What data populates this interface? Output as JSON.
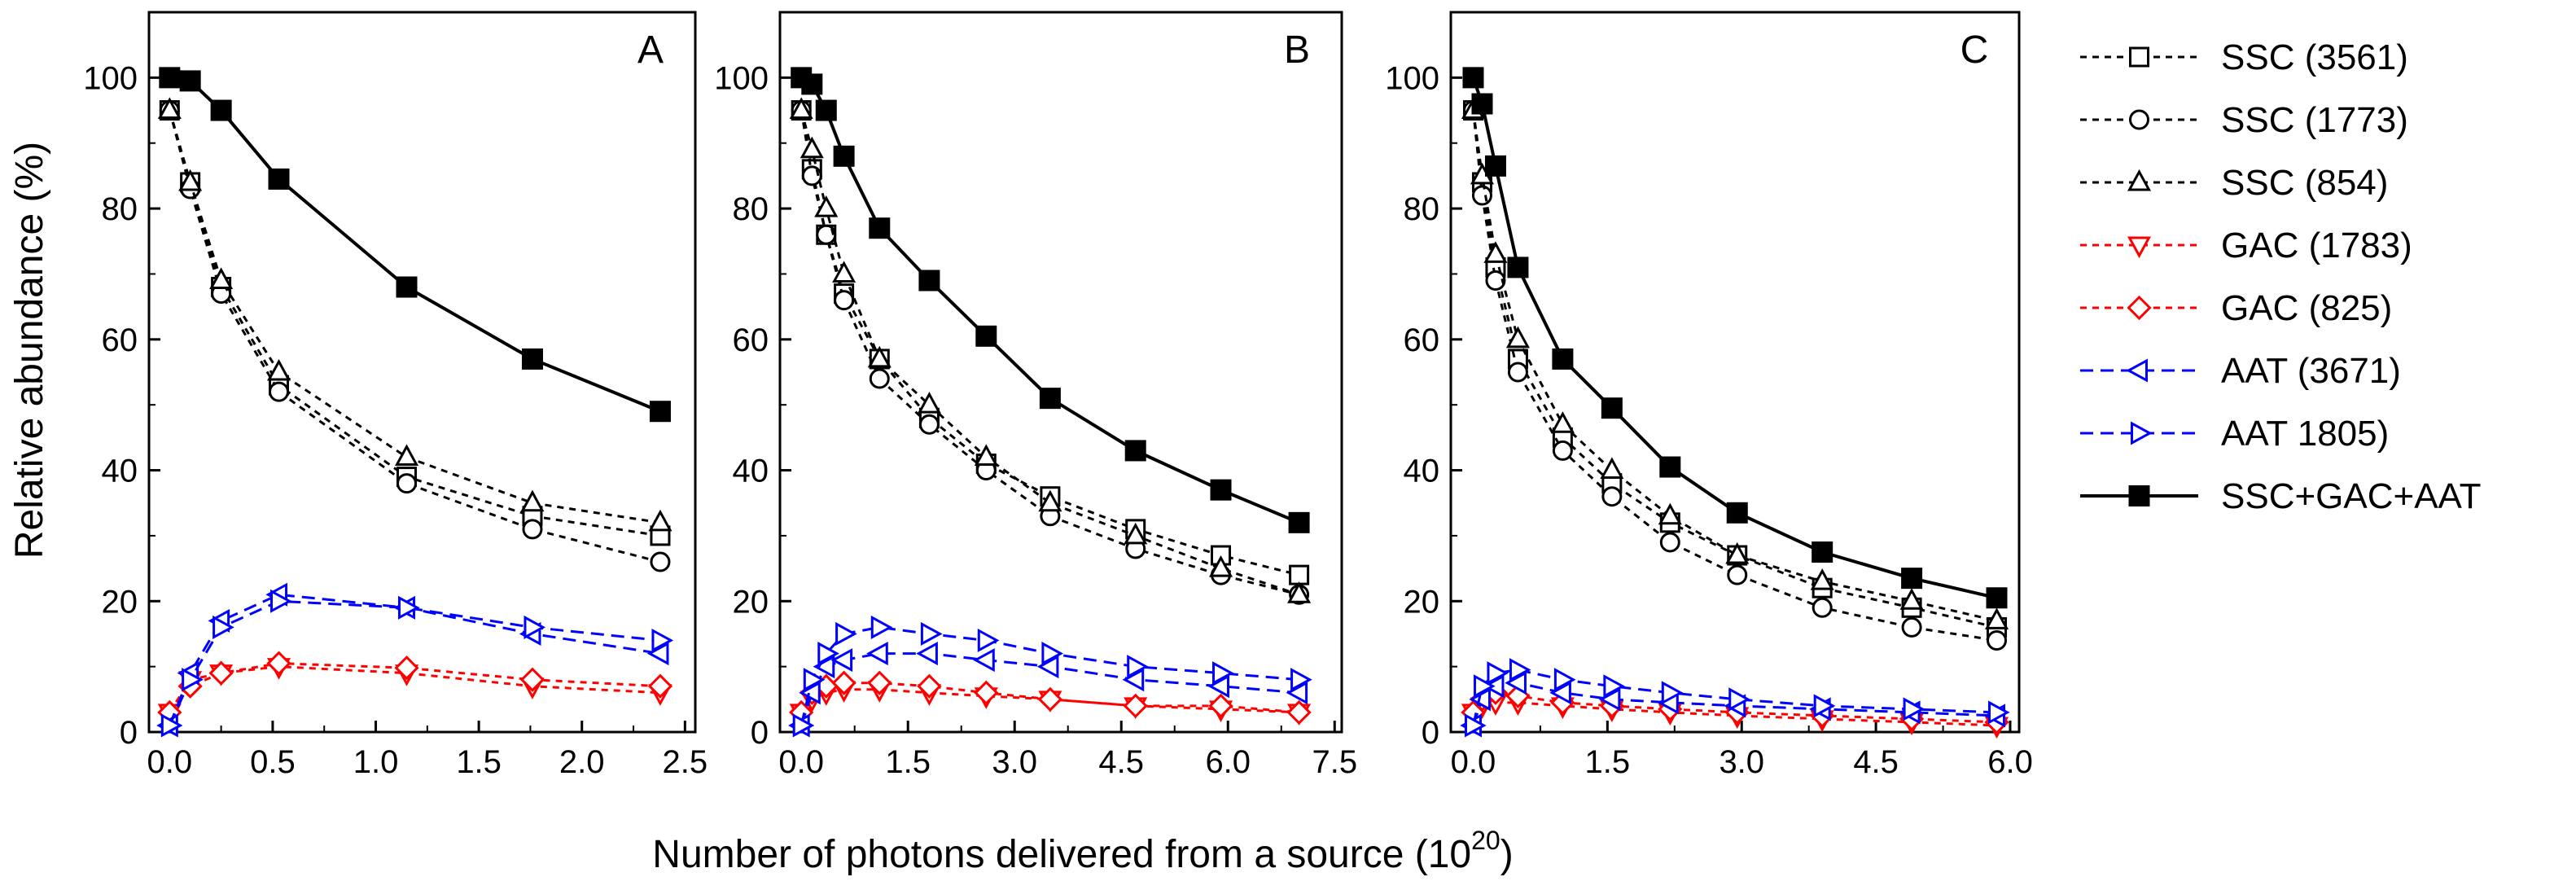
{
  "chart_data": {
    "type": "line",
    "ylabel": "Relative abundance (%)",
    "xlabel_main": "Number of photons delivered from a source (10",
    "xlabel_sup": "20",
    "xlabel_end": ")",
    "ylim": [
      0,
      110
    ],
    "yticks": [
      "0",
      "20",
      "40",
      "60",
      "80",
      "100"
    ],
    "legend_position": "right",
    "styles": {
      "SSC (3561)": {
        "color": "#000000",
        "marker": "square-open",
        "dash": "dot"
      },
      "SSC (1773)": {
        "color": "#000000",
        "marker": "circle-open",
        "dash": "dot"
      },
      "SSC (854)": {
        "color": "#000000",
        "marker": "triangle-up-open",
        "dash": "dot"
      },
      "GAC (1783)": {
        "color": "#ff0000",
        "marker": "triangle-down-open",
        "dash": "dot"
      },
      "GAC (825)": {
        "color": "#ff0000",
        "marker": "diamond-open",
        "dash": "dot"
      },
      "AAT (3671)": {
        "color": "#0000ff",
        "marker": "triangle-left-open",
        "dash": "dash"
      },
      "AAT 1805)": {
        "color": "#0000ff",
        "marker": "triangle-right-open",
        "dash": "dash"
      },
      "SSC+GAC+AAT": {
        "color": "#000000",
        "marker": "square-filled",
        "dash": "solid"
      }
    },
    "legend": [
      "SSC (3561)",
      "SSC (1773)",
      "SSC (854)",
      "GAC (1783)",
      "GAC (825)",
      "AAT (3671)",
      "AAT 1805)",
      "SSC+GAC+AAT"
    ],
    "panels": [
      {
        "label": "A",
        "xlim": [
          -0.1,
          2.55
        ],
        "xticks": [
          "0.0",
          "0.5",
          "1.0",
          "1.5",
          "2.0",
          "2.5"
        ],
        "xtick_values": [
          0,
          0.5,
          1.0,
          1.5,
          2.0,
          2.5
        ],
        "x": [
          0,
          0.1,
          0.25,
          0.53,
          1.15,
          1.76,
          2.38
        ],
        "series": [
          {
            "name": "SSC (3561)",
            "values": [
              95,
              84,
              68,
              53,
              39,
              33,
              30
            ]
          },
          {
            "name": "SSC (1773)",
            "values": [
              95,
              83,
              67,
              52,
              38,
              31,
              26
            ]
          },
          {
            "name": "SSC (854)",
            "values": [
              95,
              84,
              69,
              55,
              42,
              35,
              32
            ]
          },
          {
            "name": "GAC (1783)",
            "values": [
              3,
              8,
              9,
              10,
              9,
              7,
              6
            ]
          },
          {
            "name": "GAC (825)",
            "values": [
              3,
              7,
              9,
              10.5,
              9.8,
              8,
              7
            ]
          },
          {
            "name": "AAT (3671)",
            "values": [
              1,
              9,
              17,
              21,
              19,
              15,
              12
            ]
          },
          {
            "name": "AAT 1805)",
            "values": [
              1,
              8,
              16,
              20,
              19,
              16,
              14
            ]
          },
          {
            "name": "SSC+GAC+AAT",
            "values": [
              100,
              99.5,
              95,
              84.5,
              68,
              57,
              49
            ]
          }
        ]
      },
      {
        "label": "B",
        "xlim": [
          -0.3,
          7.6
        ],
        "xticks": [
          "0.0",
          "1.5",
          "3.0",
          "4.5",
          "6.0",
          "7.5"
        ],
        "xtick_values": [
          0,
          1.5,
          3.0,
          4.5,
          6.0,
          7.5
        ],
        "x": [
          0,
          0.15,
          0.35,
          0.6,
          1.1,
          1.8,
          2.6,
          3.5,
          4.7,
          5.9,
          7.0
        ],
        "series": [
          {
            "name": "SSC (3561)",
            "values": [
              95,
              86,
              76,
              67,
              57,
              48,
              41,
              36,
              31,
              27,
              24
            ]
          },
          {
            "name": "SSC (1773)",
            "values": [
              95,
              85,
              76,
              66,
              54,
              47,
              40,
              33,
              28,
              24,
              21
            ]
          },
          {
            "name": "SSC (854)",
            "values": [
              95,
              89,
              80,
              70,
              57,
              50,
              42,
              35,
              30,
              25,
              21
            ]
          },
          {
            "name": "GAC (1783)",
            "values": [
              3,
              5,
              6,
              6.5,
              6.5,
              6,
              5.5,
              5,
              4,
              3.5,
              3
            ]
          },
          {
            "name": "GAC (825)",
            "values": [
              3,
              6,
              7,
              7.5,
              7.5,
              7,
              6,
              5,
              4,
              4,
              3
            ]
          },
          {
            "name": "AAT (3671)",
            "values": [
              1,
              6,
              10,
              11,
              12,
              12,
              11,
              10,
              8,
              7,
              6
            ]
          },
          {
            "name": "AAT 1805)",
            "values": [
              1,
              8,
              12,
              15,
              16,
              15,
              14,
              12,
              10,
              9,
              8
            ]
          },
          {
            "name": "SSC+GAC+AAT",
            "values": [
              100,
              99,
              95,
              88,
              77,
              69,
              60.5,
              51,
              43,
              37,
              32
            ]
          }
        ]
      },
      {
        "label": "C",
        "xlim": [
          -0.25,
          6.1
        ],
        "xticks": [
          "0.0",
          "1.5",
          "3.0",
          "4.5",
          "6.0"
        ],
        "xtick_values": [
          0,
          1.5,
          3.0,
          4.5,
          6.0
        ],
        "x": [
          0,
          0.1,
          0.25,
          0.5,
          1.0,
          1.55,
          2.2,
          2.95,
          3.9,
          4.9,
          5.85
        ],
        "series": [
          {
            "name": "SSC (3561)",
            "values": [
              95,
              84,
              71,
              57,
              45,
              38,
              32,
              27,
              22,
              19,
              16
            ]
          },
          {
            "name": "SSC (1773)",
            "values": [
              95,
              82,
              69,
              55,
              43,
              36,
              29,
              24,
              19,
              16,
              14
            ]
          },
          {
            "name": "SSC (854)",
            "values": [
              95,
              85,
              73,
              60,
              47,
              40,
              33,
              27,
              23,
              20,
              17
            ]
          },
          {
            "name": "GAC (1783)",
            "values": [
              3,
              4,
              4.5,
              4.5,
              4,
              3.5,
              3,
              2.5,
              2,
              1.5,
              1
            ]
          },
          {
            "name": "GAC (825)",
            "values": [
              3,
              5,
              6,
              5.5,
              4.5,
              4,
              3.5,
              3,
              2.5,
              2,
              1.5
            ]
          },
          {
            "name": "AAT (3671)",
            "values": [
              1,
              5,
              7,
              7.5,
              6,
              5,
              4.5,
              4,
              3.5,
              3,
              2.5
            ]
          },
          {
            "name": "AAT 1805)",
            "values": [
              1,
              7,
              9,
              9.5,
              8,
              7,
              6,
              5,
              4,
              3.5,
              3
            ]
          },
          {
            "name": "SSC+GAC+AAT",
            "values": [
              100,
              96,
              86.5,
              71,
              57,
              49.5,
              40.5,
              33.5,
              27.5,
              23.5,
              20.5
            ]
          }
        ]
      }
    ]
  }
}
